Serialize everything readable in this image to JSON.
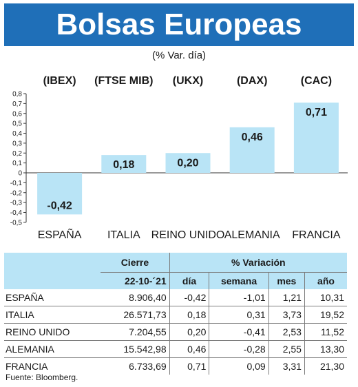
{
  "header": {
    "title": "Bolsas Europeas",
    "subtitle": "(% Var. día)"
  },
  "chart_data": {
    "type": "bar",
    "indices": [
      "(IBEX)",
      "(FTSE MIB)",
      "(UKX)",
      "(DAX)",
      "(CAC)"
    ],
    "categories": [
      "ESPAÑA",
      "ITALIA",
      "REINO UNIDO",
      "ALEMANIA",
      "FRANCIA"
    ],
    "values": [
      -0.42,
      0.18,
      0.2,
      0.46,
      0.71
    ],
    "value_labels": [
      "-0,42",
      "0,18",
      "0,20",
      "0,46",
      "0,71"
    ],
    "ylim": [
      -0.45,
      0.8
    ],
    "yticks": [
      "0,8",
      "0,7",
      "0,6",
      "0,5",
      "0,4",
      "0,3",
      "0,2",
      "0,1",
      "0",
      "-0,1",
      "-0,2",
      "-0,3",
      "-0,4",
      "-0,5"
    ],
    "yticks_values": [
      0.8,
      0.7,
      0.6,
      0.5,
      0.4,
      0.3,
      0.2,
      0.1,
      0,
      -0.1,
      -0.2,
      -0.3,
      -0.4,
      -0.5
    ],
    "bar_color": "#b9e4f6",
    "grid": false
  },
  "table": {
    "headers": {
      "cierre": "Cierre",
      "variacion": "% Variación",
      "date": "22-10-´21",
      "dia": "día",
      "semana": "semana",
      "mes": "mes",
      "ano": "año"
    },
    "rows": [
      {
        "name": "ESPAÑA",
        "cierre": "8.906,40",
        "dia": "-0,42",
        "semana": "-1,01",
        "mes": "1,21",
        "ano": "10,31"
      },
      {
        "name": "ITALIA",
        "cierre": "26.571,73",
        "dia": "0,18",
        "semana": "0,31",
        "mes": "3,73",
        "ano": "19,52"
      },
      {
        "name": "REINO UNIDO",
        "cierre": "7.204,55",
        "dia": "0,20",
        "semana": "-0,41",
        "mes": "2,53",
        "ano": "11,52"
      },
      {
        "name": "ALEMANIA",
        "cierre": "15.542,98",
        "dia": "0,46",
        "semana": "-0,28",
        "mes": "2,55",
        "ano": "13,30"
      },
      {
        "name": "FRANCIA",
        "cierre": "6.733,69",
        "dia": "0,71",
        "semana": "0,09",
        "mes": "3,31",
        "ano": "21,30"
      }
    ]
  },
  "source": "Fuente: Bloomberg."
}
